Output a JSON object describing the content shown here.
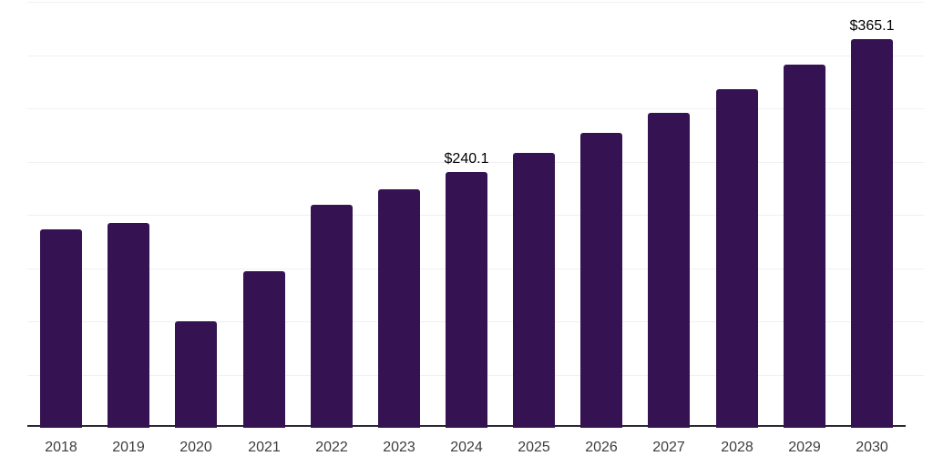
{
  "chart": {
    "colors": {
      "background": "#ffffff",
      "bar": "#351251",
      "axis_line": "#2b2a33",
      "gridline": "#f1eff3",
      "tick_label": "#3d3d3d",
      "data_label": "#000000"
    }
  },
  "chart_data": {
    "type": "bar",
    "title": "",
    "xlabel": "",
    "ylabel": "",
    "categories": [
      "2018",
      "2019",
      "2020",
      "2021",
      "2022",
      "2023",
      "2024",
      "2025",
      "2026",
      "2027",
      "2028",
      "2029",
      "2030"
    ],
    "values": [
      186,
      192,
      100,
      147,
      209,
      224,
      240.1,
      258,
      277,
      296,
      318,
      341,
      365.1
    ],
    "bar_labels": {
      "2024": "$240.1",
      "2030": "$365.1"
    },
    "ylim": [
      0,
      400
    ],
    "gridline_step": 50,
    "grid": "horizontal",
    "legend": "none"
  }
}
